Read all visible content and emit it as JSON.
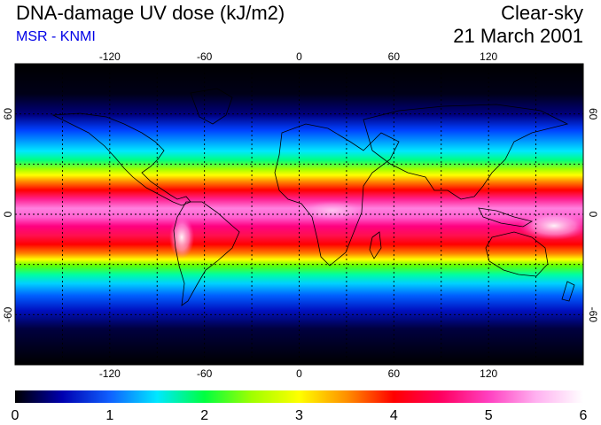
{
  "header": {
    "title": "DNA-damage UV dose (kJ/m2)",
    "subtitle": "MSR - KNMI",
    "condition": "Clear-sky",
    "date": "21 March 2001"
  },
  "map": {
    "longitude_ticks": [
      -120,
      -60,
      0,
      60,
      120
    ],
    "latitude_ticks": [
      60,
      0,
      -60
    ],
    "lon_range": [
      -180,
      180
    ],
    "lat_range": [
      -90,
      90
    ],
    "grid_lines_lon": [
      -150,
      -120,
      -90,
      -60,
      -30,
      0,
      30,
      60,
      90,
      120,
      150
    ],
    "grid_lines_lat": [
      -60,
      -30,
      0,
      30,
      60
    ],
    "grid": "dotted"
  },
  "colorbar": {
    "labels": [
      "0",
      "1",
      "2",
      "3",
      "4",
      "5",
      "6"
    ],
    "range": [
      0,
      6
    ],
    "colors": [
      "#000000",
      "#0000b0",
      "#1060ff",
      "#00e8ff",
      "#00ff40",
      "#a0ff00",
      "#ffff00",
      "#ff9000",
      "#ff0000",
      "#ff0060",
      "#ff40c0",
      "#ffb0f0",
      "#ffffff"
    ]
  }
}
